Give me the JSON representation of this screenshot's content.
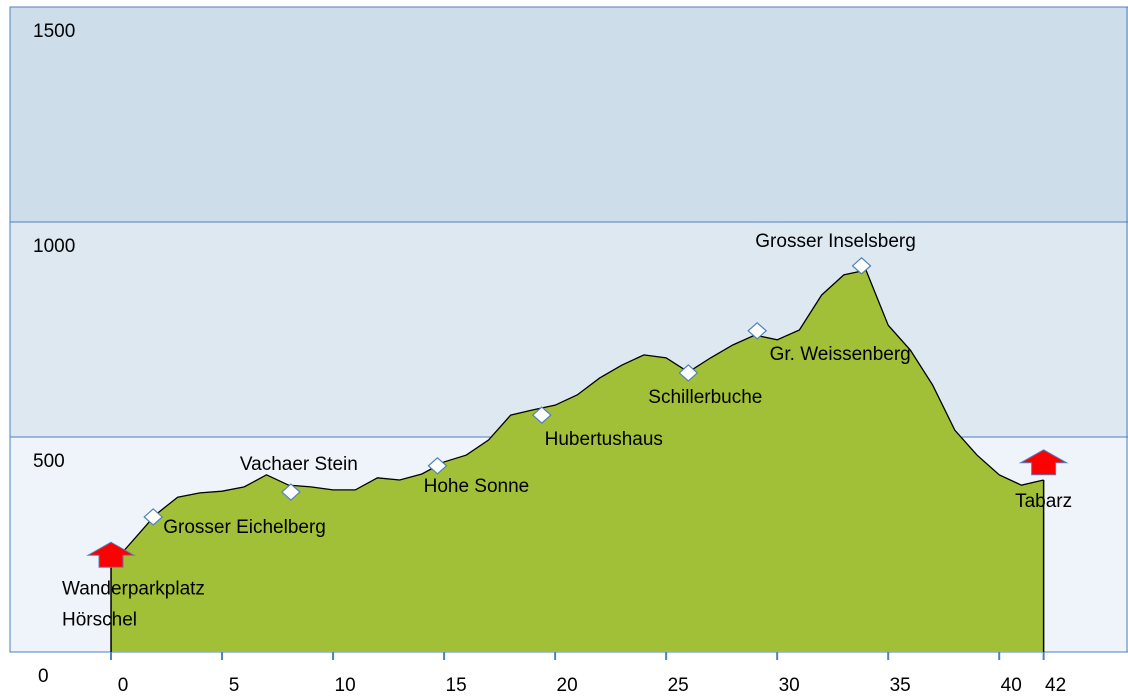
{
  "chart_data": {
    "type": "area",
    "x": [
      0,
      1,
      2,
      3,
      4,
      5,
      6,
      7,
      8,
      9,
      10,
      11,
      12,
      13,
      14,
      15,
      16,
      17,
      18,
      19,
      20,
      21,
      22,
      23,
      24,
      25,
      26,
      27,
      28,
      29,
      30,
      31,
      32,
      33,
      34,
      35,
      36,
      37,
      38,
      39,
      40,
      41,
      42
    ],
    "values": [
      202,
      260,
      319,
      360,
      370,
      374,
      384,
      412,
      388,
      384,
      377,
      377,
      405,
      400,
      414,
      442,
      458,
      493,
      551,
      563,
      574,
      598,
      637,
      667,
      691,
      684,
      651,
      684,
      714,
      737,
      726,
      749,
      830,
      877,
      888,
      760,
      702,
      621,
      516,
      458,
      412,
      388,
      400
    ],
    "color": "#a2c037",
    "xlim": [
      -4.55,
      45.8
    ],
    "ylim": [
      0,
      1500
    ],
    "xticks": [
      0,
      5,
      10,
      15,
      20,
      25,
      30,
      35,
      40,
      42
    ],
    "yticks": [
      0,
      500,
      1000,
      1500
    ],
    "bands": [
      "#eef4f9",
      "#dde8f1",
      "#cddeea"
    ],
    "grid": true,
    "waypoints": [
      {
        "label": "Grosser Eichelberg",
        "x": 1.9,
        "y": 314
      },
      {
        "label": "Vachaer Stein",
        "x": 8.1,
        "y": 372
      },
      {
        "label": "Hohe Sonne",
        "x": 14.7,
        "y": 433
      },
      {
        "label": "Hubertushaus",
        "x": 19.4,
        "y": 551
      },
      {
        "label": "Schillerbuche",
        "x": 26.0,
        "y": 649
      },
      {
        "label": "Gr. Weissenberg",
        "x": 29.1,
        "y": 747
      },
      {
        "label": "Grosser Inselsberg",
        "x": 33.8,
        "y": 898
      }
    ],
    "endpoints": [
      {
        "label": [
          "Wanderparkplatz",
          "Hörschel"
        ],
        "x": 0,
        "y": 225
      },
      {
        "label": [
          "Tabarz"
        ],
        "x": 42,
        "y": 440
      }
    ]
  }
}
